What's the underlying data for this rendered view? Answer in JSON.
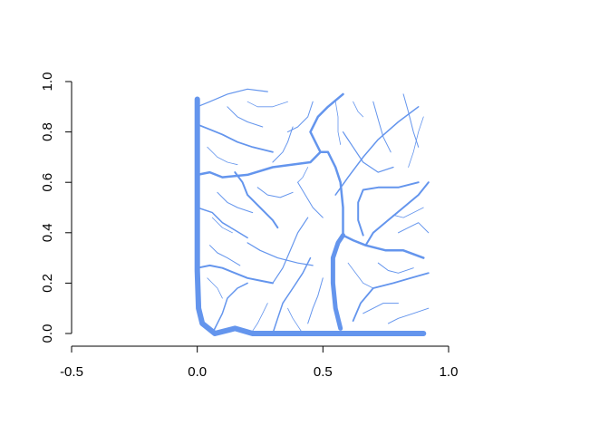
{
  "chart_data": {
    "type": "line",
    "title": "",
    "xlabel": "",
    "ylabel": "",
    "xlim": [
      -0.5,
      1.0
    ],
    "ylim": [
      0.0,
      1.0
    ],
    "x_ticks": [
      {
        "value": -0.5,
        "label": "-0.5"
      },
      {
        "value": 0.0,
        "label": "0.0"
      },
      {
        "value": 0.5,
        "label": "0.5"
      },
      {
        "value": 1.0,
        "label": "1.0"
      }
    ],
    "y_ticks": [
      {
        "value": 0.0,
        "label": "0.0"
      },
      {
        "value": 0.2,
        "label": "0.2"
      },
      {
        "value": 0.4,
        "label": "0.4"
      },
      {
        "value": 0.6,
        "label": "0.6"
      },
      {
        "value": 0.8,
        "label": "0.8"
      },
      {
        "value": 1.0,
        "label": "1.0"
      }
    ],
    "grid": false,
    "color": "#6495ED",
    "series": [
      {
        "width": 6,
        "points": [
          [
            0.0,
            0.93
          ],
          [
            0.0,
            0.7
          ],
          [
            0.0,
            0.45
          ],
          [
            0.0,
            0.25
          ],
          [
            0.005,
            0.1
          ],
          [
            0.02,
            0.04
          ],
          [
            0.07,
            0.0
          ],
          [
            0.15,
            0.02
          ],
          [
            0.22,
            0.0
          ],
          [
            0.5,
            0.0
          ],
          [
            0.9,
            0.0
          ]
        ]
      },
      {
        "width": 5,
        "points": [
          [
            0.57,
            0.02
          ],
          [
            0.55,
            0.1
          ],
          [
            0.54,
            0.2
          ],
          [
            0.54,
            0.3
          ],
          [
            0.56,
            0.36
          ],
          [
            0.58,
            0.39
          ]
        ]
      },
      {
        "width": 2.5,
        "points": [
          [
            0.0,
            0.63
          ],
          [
            0.05,
            0.64
          ],
          [
            0.1,
            0.62
          ],
          [
            0.2,
            0.63
          ],
          [
            0.3,
            0.66
          ],
          [
            0.45,
            0.68
          ],
          [
            0.49,
            0.72
          ]
        ]
      },
      {
        "width": 2.5,
        "points": [
          [
            0.49,
            0.72
          ],
          [
            0.47,
            0.76
          ],
          [
            0.45,
            0.8
          ],
          [
            0.48,
            0.86
          ],
          [
            0.52,
            0.9
          ],
          [
            0.58,
            0.95
          ]
        ]
      },
      {
        "width": 2.5,
        "points": [
          [
            0.58,
            0.39
          ],
          [
            0.62,
            0.37
          ],
          [
            0.67,
            0.35
          ],
          [
            0.75,
            0.33
          ],
          [
            0.82,
            0.33
          ],
          [
            0.9,
            0.3
          ]
        ]
      },
      {
        "width": 2.5,
        "points": [
          [
            0.58,
            0.39
          ],
          [
            0.58,
            0.5
          ],
          [
            0.57,
            0.6
          ],
          [
            0.55,
            0.66
          ],
          [
            0.52,
            0.72
          ],
          [
            0.49,
            0.72
          ]
        ]
      },
      {
        "width": 2,
        "points": [
          [
            0.0,
            0.26
          ],
          [
            0.05,
            0.27
          ],
          [
            0.1,
            0.26
          ],
          [
            0.15,
            0.24
          ],
          [
            0.2,
            0.22
          ],
          [
            0.25,
            0.21
          ],
          [
            0.3,
            0.2
          ]
        ]
      },
      {
        "width": 2,
        "points": [
          [
            0.15,
            0.64
          ],
          [
            0.18,
            0.6
          ],
          [
            0.2,
            0.55
          ],
          [
            0.25,
            0.5
          ],
          [
            0.3,
            0.45
          ],
          [
            0.32,
            0.42
          ]
        ]
      },
      {
        "width": 2,
        "points": [
          [
            0.66,
            0.39
          ],
          [
            0.64,
            0.45
          ],
          [
            0.64,
            0.52
          ],
          [
            0.66,
            0.57
          ],
          [
            0.72,
            0.58
          ],
          [
            0.8,
            0.58
          ],
          [
            0.88,
            0.6
          ]
        ]
      },
      {
        "width": 2,
        "points": [
          [
            0.67,
            0.35
          ],
          [
            0.7,
            0.4
          ],
          [
            0.76,
            0.45
          ],
          [
            0.82,
            0.5
          ],
          [
            0.88,
            0.55
          ],
          [
            0.92,
            0.6
          ]
        ]
      },
      {
        "width": 1.8,
        "points": [
          [
            0.0,
            0.83
          ],
          [
            0.05,
            0.81
          ],
          [
            0.1,
            0.79
          ],
          [
            0.16,
            0.76
          ],
          [
            0.22,
            0.74
          ],
          [
            0.3,
            0.72
          ]
        ]
      },
      {
        "width": 1.8,
        "points": [
          [
            0.62,
            0.05
          ],
          [
            0.65,
            0.12
          ],
          [
            0.7,
            0.18
          ],
          [
            0.78,
            0.2
          ],
          [
            0.85,
            0.22
          ],
          [
            0.92,
            0.24
          ]
        ]
      },
      {
        "width": 1.5,
        "points": [
          [
            0.0,
            0.5
          ],
          [
            0.06,
            0.48
          ],
          [
            0.1,
            0.44
          ],
          [
            0.15,
            0.41
          ],
          [
            0.2,
            0.38
          ]
        ]
      },
      {
        "width": 1.5,
        "points": [
          [
            0.55,
            0.55
          ],
          [
            0.6,
            0.62
          ],
          [
            0.66,
            0.7
          ],
          [
            0.72,
            0.77
          ],
          [
            0.8,
            0.84
          ],
          [
            0.88,
            0.9
          ]
        ]
      },
      {
        "width": 1.5,
        "points": [
          [
            0.3,
            0.0
          ],
          [
            0.32,
            0.06
          ],
          [
            0.34,
            0.12
          ],
          [
            0.38,
            0.18
          ],
          [
            0.42,
            0.24
          ],
          [
            0.45,
            0.3
          ]
        ]
      },
      {
        "width": 1.5,
        "points": [
          [
            0.06,
            0.0
          ],
          [
            0.1,
            0.08
          ],
          [
            0.12,
            0.14
          ],
          [
            0.16,
            0.18
          ],
          [
            0.2,
            0.2
          ]
        ]
      },
      {
        "width": 1.2,
        "points": [
          [
            0.0,
            0.9
          ],
          [
            0.05,
            0.92
          ],
          [
            0.12,
            0.95
          ],
          [
            0.2,
            0.97
          ],
          [
            0.28,
            0.96
          ]
        ]
      },
      {
        "width": 1.2,
        "points": [
          [
            0.3,
            0.2
          ],
          [
            0.34,
            0.26
          ],
          [
            0.37,
            0.33
          ],
          [
            0.4,
            0.4
          ],
          [
            0.44,
            0.46
          ]
        ]
      },
      {
        "width": 1.2,
        "points": [
          [
            0.2,
            0.36
          ],
          [
            0.25,
            0.33
          ],
          [
            0.32,
            0.3
          ],
          [
            0.4,
            0.28
          ],
          [
            0.46,
            0.27
          ]
        ]
      },
      {
        "width": 1.2,
        "points": [
          [
            0.58,
            0.8
          ],
          [
            0.62,
            0.74
          ],
          [
            0.66,
            0.68
          ],
          [
            0.72,
            0.64
          ],
          [
            0.78,
            0.66
          ]
        ]
      },
      {
        "width": 1,
        "points": [
          [
            0.05,
            0.35
          ],
          [
            0.08,
            0.32
          ],
          [
            0.12,
            0.3
          ],
          [
            0.17,
            0.27
          ]
        ]
      },
      {
        "width": 1,
        "points": [
          [
            0.38,
            0.82
          ],
          [
            0.36,
            0.76
          ],
          [
            0.34,
            0.72
          ],
          [
            0.3,
            0.68
          ]
        ]
      },
      {
        "width": 1,
        "points": [
          [
            0.7,
            0.92
          ],
          [
            0.72,
            0.85
          ],
          [
            0.74,
            0.78
          ],
          [
            0.77,
            0.72
          ]
        ]
      },
      {
        "width": 1,
        "points": [
          [
            0.82,
            0.95
          ],
          [
            0.84,
            0.88
          ],
          [
            0.86,
            0.8
          ],
          [
            0.88,
            0.74
          ]
        ]
      },
      {
        "width": 1,
        "points": [
          [
            0.46,
            0.92
          ],
          [
            0.44,
            0.86
          ],
          [
            0.4,
            0.82
          ],
          [
            0.36,
            0.8
          ]
        ]
      },
      {
        "width": 1,
        "points": [
          [
            0.12,
            0.9
          ],
          [
            0.16,
            0.86
          ],
          [
            0.2,
            0.84
          ],
          [
            0.26,
            0.82
          ]
        ]
      },
      {
        "width": 1,
        "points": [
          [
            0.08,
            0.56
          ],
          [
            0.12,
            0.52
          ],
          [
            0.16,
            0.5
          ],
          [
            0.22,
            0.48
          ]
        ]
      },
      {
        "width": 1,
        "points": [
          [
            0.4,
            0.6
          ],
          [
            0.43,
            0.55
          ],
          [
            0.46,
            0.5
          ],
          [
            0.5,
            0.46
          ]
        ]
      },
      {
        "width": 1,
        "points": [
          [
            0.72,
            0.28
          ],
          [
            0.76,
            0.25
          ],
          [
            0.8,
            0.24
          ],
          [
            0.86,
            0.26
          ]
        ]
      },
      {
        "width": 1,
        "points": [
          [
            0.44,
            0.04
          ],
          [
            0.46,
            0.1
          ],
          [
            0.48,
            0.15
          ],
          [
            0.5,
            0.22
          ]
        ]
      },
      {
        "width": 1,
        "points": [
          [
            0.66,
            0.08
          ],
          [
            0.7,
            0.1
          ],
          [
            0.74,
            0.12
          ],
          [
            0.8,
            0.12
          ]
        ]
      },
      {
        "width": 1,
        "points": [
          [
            0.76,
            0.04
          ],
          [
            0.8,
            0.06
          ],
          [
            0.86,
            0.08
          ],
          [
            0.92,
            0.1
          ]
        ]
      },
      {
        "width": 1,
        "points": [
          [
            0.92,
            0.4
          ],
          [
            0.88,
            0.44
          ],
          [
            0.84,
            0.42
          ],
          [
            0.8,
            0.4
          ]
        ]
      },
      {
        "width": 1,
        "points": [
          [
            0.24,
            0.58
          ],
          [
            0.28,
            0.55
          ],
          [
            0.33,
            0.54
          ],
          [
            0.38,
            0.56
          ]
        ]
      },
      {
        "width": 0.8,
        "points": [
          [
            0.04,
            0.74
          ],
          [
            0.08,
            0.7
          ],
          [
            0.12,
            0.68
          ],
          [
            0.16,
            0.67
          ]
        ]
      },
      {
        "width": 0.8,
        "points": [
          [
            0.55,
            0.92
          ],
          [
            0.56,
            0.86
          ],
          [
            0.56,
            0.8
          ],
          [
            0.57,
            0.75
          ]
        ]
      },
      {
        "width": 0.8,
        "points": [
          [
            0.9,
            0.86
          ],
          [
            0.88,
            0.8
          ],
          [
            0.86,
            0.72
          ],
          [
            0.84,
            0.66
          ]
        ]
      },
      {
        "width": 0.8,
        "points": [
          [
            0.28,
            0.12
          ],
          [
            0.26,
            0.08
          ],
          [
            0.24,
            0.04
          ],
          [
            0.22,
            0.01
          ]
        ]
      },
      {
        "width": 0.8,
        "points": [
          [
            0.36,
            0.1
          ],
          [
            0.38,
            0.06
          ],
          [
            0.4,
            0.03
          ],
          [
            0.42,
            0.0
          ]
        ]
      },
      {
        "width": 0.8,
        "points": [
          [
            0.1,
            0.14
          ],
          [
            0.08,
            0.18
          ],
          [
            0.06,
            0.2
          ],
          [
            0.04,
            0.22
          ]
        ]
      },
      {
        "width": 0.8,
        "points": [
          [
            0.9,
            0.5
          ],
          [
            0.86,
            0.48
          ],
          [
            0.82,
            0.46
          ],
          [
            0.78,
            0.47
          ]
        ]
      },
      {
        "width": 0.8,
        "points": [
          [
            0.6,
            0.28
          ],
          [
            0.63,
            0.24
          ],
          [
            0.66,
            0.2
          ],
          [
            0.7,
            0.18
          ]
        ]
      },
      {
        "width": 0.8,
        "points": [
          [
            0.44,
            0.66
          ],
          [
            0.42,
            0.62
          ],
          [
            0.4,
            0.6
          ]
        ]
      },
      {
        "width": 0.8,
        "points": [
          [
            0.06,
            0.46
          ],
          [
            0.1,
            0.42
          ],
          [
            0.14,
            0.4
          ]
        ]
      },
      {
        "width": 0.8,
        "points": [
          [
            0.2,
            0.92
          ],
          [
            0.24,
            0.9
          ],
          [
            0.3,
            0.9
          ],
          [
            0.36,
            0.92
          ]
        ]
      },
      {
        "width": 0.8,
        "points": [
          [
            0.62,
            0.92
          ],
          [
            0.64,
            0.88
          ],
          [
            0.66,
            0.86
          ]
        ]
      }
    ]
  }
}
